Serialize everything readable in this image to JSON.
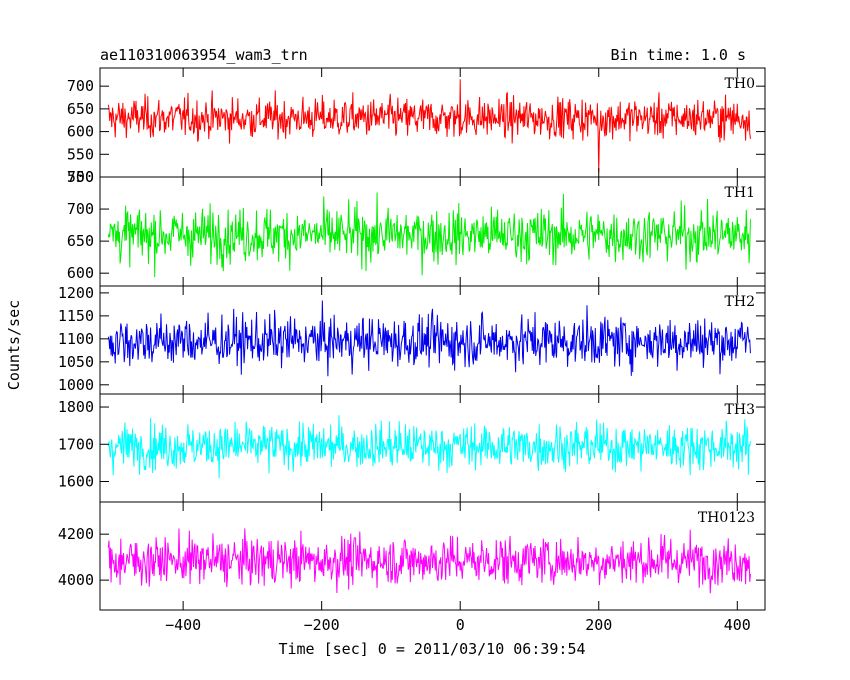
{
  "header": {
    "title": "ae110310063954_wam3_trn",
    "bin_time": "Bin time: 1.0 s"
  },
  "axes": {
    "xlabel": "Time [sec] 0 = 2011/03/10 06:39:54",
    "ylabel": "Counts/sec",
    "xlim": [
      -520,
      440
    ],
    "xticks": [
      -400,
      -200,
      0,
      200,
      400
    ]
  },
  "chart_data": [
    {
      "type": "line",
      "name": "TH0",
      "color": "#ff0000",
      "ylim": [
        500,
        740
      ],
      "yticks": [
        500,
        550,
        600,
        650,
        700
      ],
      "mean": 630,
      "amplitude": 40,
      "x_start": -508,
      "x_end": 419,
      "spikes": [
        {
          "x": 0,
          "dy": 85
        },
        {
          "x": 200,
          "dy": -120
        }
      ]
    },
    {
      "type": "line",
      "name": "TH1",
      "color": "#00ee00",
      "ylim": [
        580,
        750
      ],
      "yticks": [
        600,
        650,
        700,
        750
      ],
      "mean": 660,
      "amplitude": 38,
      "x_start": -508,
      "x_end": 419,
      "spikes": []
    },
    {
      "type": "line",
      "name": "TH2",
      "color": "#0000ee",
      "ylim": [
        980,
        1215
      ],
      "yticks": [
        1000,
        1050,
        1100,
        1150,
        1200
      ],
      "mean": 1095,
      "amplitude": 50,
      "x_start": -508,
      "x_end": 419,
      "spikes": []
    },
    {
      "type": "line",
      "name": "TH3",
      "color": "#00ffff",
      "ylim": [
        1545,
        1835
      ],
      "yticks": [
        1600,
        1700,
        1800
      ],
      "mean": 1695,
      "amplitude": 55,
      "x_start": -508,
      "x_end": 419,
      "spikes": []
    },
    {
      "type": "line",
      "name": "TH0123",
      "color": "#ff00ff",
      "ylim": [
        3870,
        4340
      ],
      "yticks": [
        4000,
        4200
      ],
      "mean": 4085,
      "amplitude": 95,
      "x_start": -508,
      "x_end": 419,
      "spikes": []
    }
  ]
}
